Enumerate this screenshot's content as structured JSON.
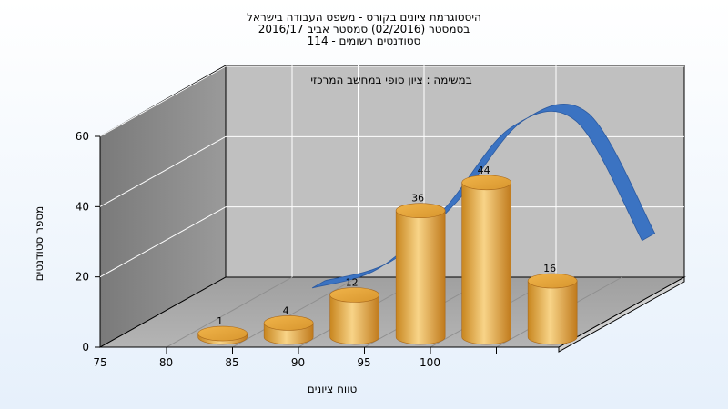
{
  "chart_data": {
    "type": "bar",
    "title": [
      "היסטוגרמת ציונים בקורס - משפט העבודה בישראל",
      "בסמסטר  (02/2016)  סמסטר אביב 2016/17",
      "סטודנטים רשומים - 114"
    ],
    "subtitle": "במשימה : ציון סופי במחשב המרכזי",
    "xlabel": "טווח ציונים",
    "ylabel": "מספר סטודנטים",
    "x_ticks": [
      75,
      80,
      85,
      90,
      95,
      100
    ],
    "y_ticks": [
      0,
      20,
      40,
      60
    ],
    "ylim": [
      0,
      60
    ],
    "series": [
      {
        "bars": [
          {
            "x": 77.5,
            "value": 1,
            "label": "1"
          },
          {
            "x": 82.5,
            "value": 4,
            "label": "4"
          },
          {
            "x": 87.5,
            "value": 12,
            "label": "12"
          },
          {
            "x": 92.5,
            "value": 36,
            "label": "36"
          },
          {
            "x": 97.5,
            "value": 44,
            "label": "44"
          },
          {
            "x": 102.5,
            "value": 16,
            "label": "16"
          }
        ]
      },
      {
        "curve": [
          {
            "x": 82.5,
            "y": 2.5
          },
          {
            "x": 87.5,
            "y": 8
          },
          {
            "x": 92.5,
            "y": 25
          },
          {
            "x": 97.5,
            "y": 48
          },
          {
            "x": 102.5,
            "y": 50
          },
          {
            "x": 107.5,
            "y": 16
          }
        ]
      }
    ],
    "colors": {
      "bar": "#e5a33c",
      "bar_light": "#f7d27e",
      "bar_dark": "#c07e1f",
      "curve": "#3b73c2",
      "back_wall": "#c0c0c0",
      "side_wall": "#8a8a8a",
      "floor": "#a9a9a9"
    }
  }
}
